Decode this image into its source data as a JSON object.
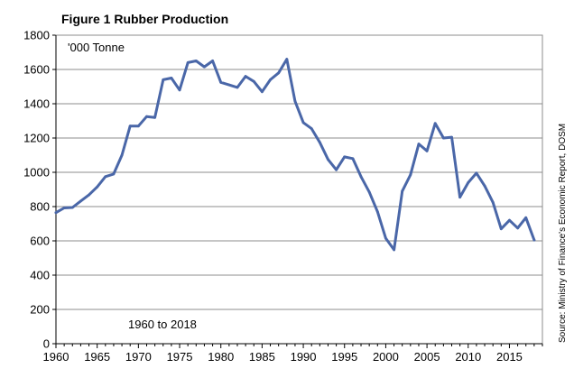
{
  "chart_data": {
    "type": "line",
    "title": "Figure 1 Rubber Production",
    "unit_label": "'000 Tonne",
    "period_label": "1960 to 2018",
    "source": "Source: Ministry of Finance's Economic Report, DOSM",
    "xlabel": "",
    "ylabel": "",
    "xlim": [
      1960,
      2019
    ],
    "ylim": [
      0,
      1800
    ],
    "x_ticks": [
      1960,
      1965,
      1970,
      1975,
      1980,
      1985,
      1990,
      1995,
      2000,
      2005,
      2010,
      2015
    ],
    "y_ticks": [
      0,
      200,
      400,
      600,
      800,
      1000,
      1200,
      1400,
      1600,
      1800
    ],
    "grid": true,
    "series_color": "#4a67a8",
    "gridline_color": "#8c8c8c",
    "series": [
      {
        "x": [
          1960,
          1961,
          1962,
          1963,
          1964,
          1965,
          1966,
          1967,
          1968,
          1969,
          1970,
          1971,
          1972,
          1973,
          1974,
          1975,
          1976,
          1977,
          1978,
          1979,
          1980,
          1981,
          1982,
          1983,
          1984,
          1985,
          1986,
          1987,
          1988,
          1989,
          1990,
          1991,
          1992,
          1993,
          1994,
          1995,
          1996,
          1997,
          1998,
          1999,
          2000,
          2001,
          2002,
          2003,
          2004,
          2005,
          2006,
          2007,
          2008,
          2009,
          2010,
          2011,
          2012,
          2013,
          2014,
          2015,
          2016,
          2017,
          2018
        ],
        "values": [
          765,
          792,
          795,
          832,
          868,
          915,
          975,
          990,
          1100,
          1270,
          1270,
          1325,
          1320,
          1540,
          1550,
          1480,
          1640,
          1650,
          1615,
          1650,
          1525,
          1510,
          1495,
          1560,
          1530,
          1470,
          1540,
          1580,
          1660,
          1415,
          1290,
          1255,
          1175,
          1075,
          1015,
          1090,
          1080,
          975,
          885,
          770,
          615,
          548,
          890,
          985,
          1165,
          1125,
          1285,
          1200,
          1205,
          855,
          940,
          995,
          920,
          825,
          670,
          720,
          675,
          735,
          605
        ]
      }
    ]
  }
}
